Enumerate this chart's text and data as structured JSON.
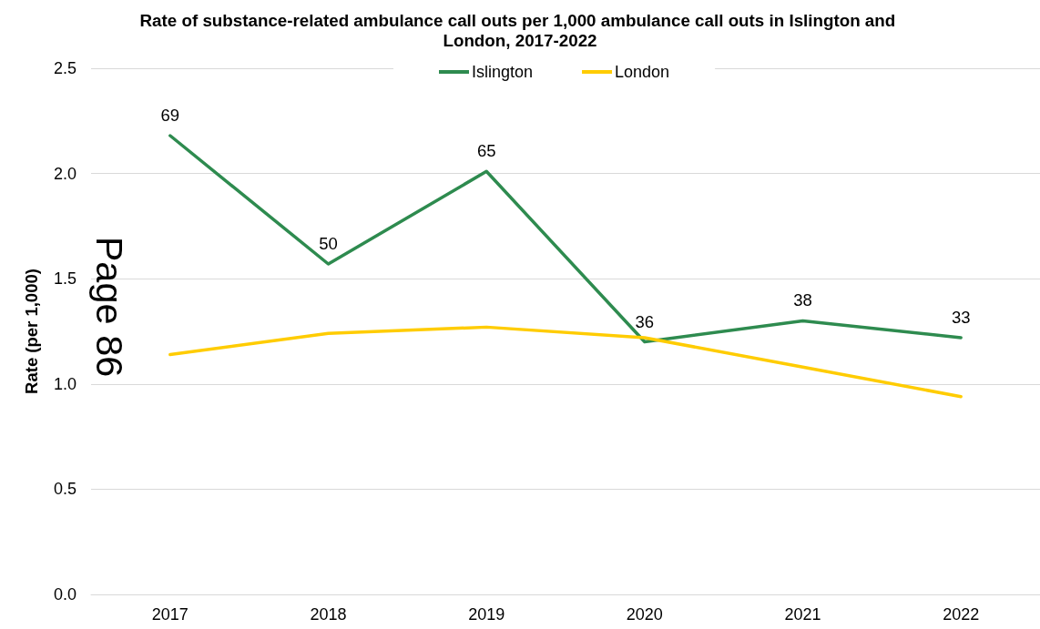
{
  "chart_data": {
    "type": "line",
    "title": "Rate of substance-related ambulance call outs per 1,000 ambulance call outs in Islington and London, 2017-2022",
    "ylabel": "Rate (per 1,000)",
    "categories": [
      "2017",
      "2018",
      "2019",
      "2020",
      "2021",
      "2022"
    ],
    "series": [
      {
        "name": "Islington",
        "color": "#2e8b4f",
        "values": [
          2.18,
          1.57,
          2.01,
          1.2,
          1.3,
          1.22
        ]
      },
      {
        "name": "London",
        "color": "#ffcc00",
        "values": [
          1.14,
          1.24,
          1.27,
          1.22,
          1.08,
          0.94
        ]
      }
    ],
    "ylim": [
      0,
      2.5
    ],
    "yticks": [
      {
        "value": 0,
        "label": "0.0"
      },
      0.5,
      {
        "value": 1,
        "label": "1.0"
      },
      1.5,
      {
        "value": 2,
        "label": "2.0"
      },
      2.5
    ],
    "grid": "y",
    "legend": "top",
    "marker": "none",
    "line_style": "solid",
    "annotations": [
      "Page 86",
      {
        "text": "69",
        "x": "2017",
        "y": 2.18
      },
      {
        "text": "50",
        "x": "2018",
        "y": 1.57
      },
      {
        "text": "65",
        "x": "2019",
        "y": 2.01
      },
      {
        "text": "36",
        "x": "2020",
        "y": 1.2
      },
      {
        "text": "38",
        "x": "2021",
        "y": 1.3
      },
      {
        "text": "33",
        "x": "2022",
        "y": 1.22
      }
    ]
  }
}
